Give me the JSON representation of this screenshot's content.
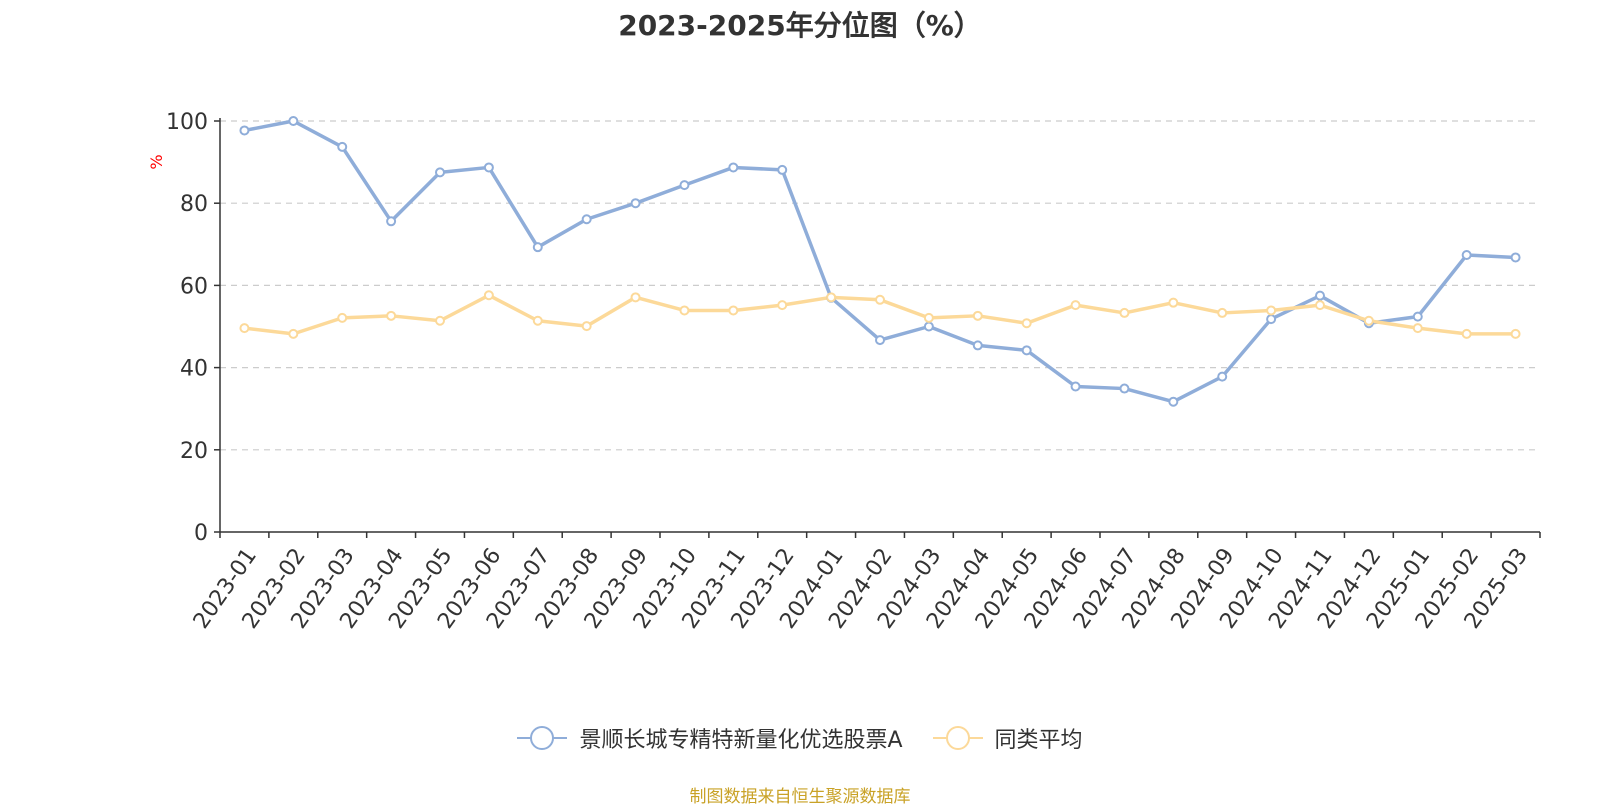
{
  "source_text": "制图数据来自恒生聚源数据库",
  "colors": {
    "series_a": "#8fadd9",
    "series_b": "#fcd999",
    "axis": "#333333",
    "grid": "#cccccc",
    "ylabel": "#ff0000",
    "source": "#c9a227"
  },
  "chart_data": {
    "type": "line",
    "title": "2023-2025年分位图（%）",
    "xlabel": "",
    "ylabel": "%",
    "ylim": [
      0,
      100
    ],
    "yticks": [
      "0",
      "20",
      "40",
      "60",
      "80",
      "100"
    ],
    "grid": true,
    "legend_position": "bottom",
    "categories": [
      "2023-01",
      "2023-02",
      "2023-03",
      "2023-04",
      "2023-05",
      "2023-06",
      "2023-07",
      "2023-08",
      "2023-09",
      "2023-10",
      "2023-11",
      "2023-12",
      "2024-01",
      "2024-02",
      "2024-03",
      "2024-04",
      "2024-05",
      "2024-06",
      "2024-07",
      "2024-08",
      "2024-09",
      "2024-10",
      "2024-11",
      "2024-12",
      "2025-01",
      "2025-02",
      "2025-03"
    ],
    "series": [
      {
        "name": "景顺长城专精特新量化优选股票A",
        "color": "#8fadd9",
        "values": [
          97.7,
          100,
          93.7,
          75.6,
          87.5,
          88.7,
          69.3,
          76.1,
          80.0,
          84.4,
          88.7,
          88.1,
          57.0,
          46.7,
          50.0,
          45.4,
          44.2,
          35.4,
          34.9,
          31.7,
          37.8,
          51.8,
          57.5,
          50.8,
          52.4,
          67.4,
          66.8
        ]
      },
      {
        "name": "同类平均",
        "color": "#fcd999",
        "values": [
          49.6,
          48.2,
          52.1,
          52.6,
          51.4,
          57.6,
          51.4,
          50.1,
          57.1,
          53.9,
          53.9,
          55.2,
          57.1,
          56.5,
          52.1,
          52.6,
          50.8,
          55.2,
          53.3,
          55.8,
          53.3,
          53.9,
          55.2,
          51.4,
          49.6,
          48.2,
          48.2
        ]
      }
    ]
  }
}
